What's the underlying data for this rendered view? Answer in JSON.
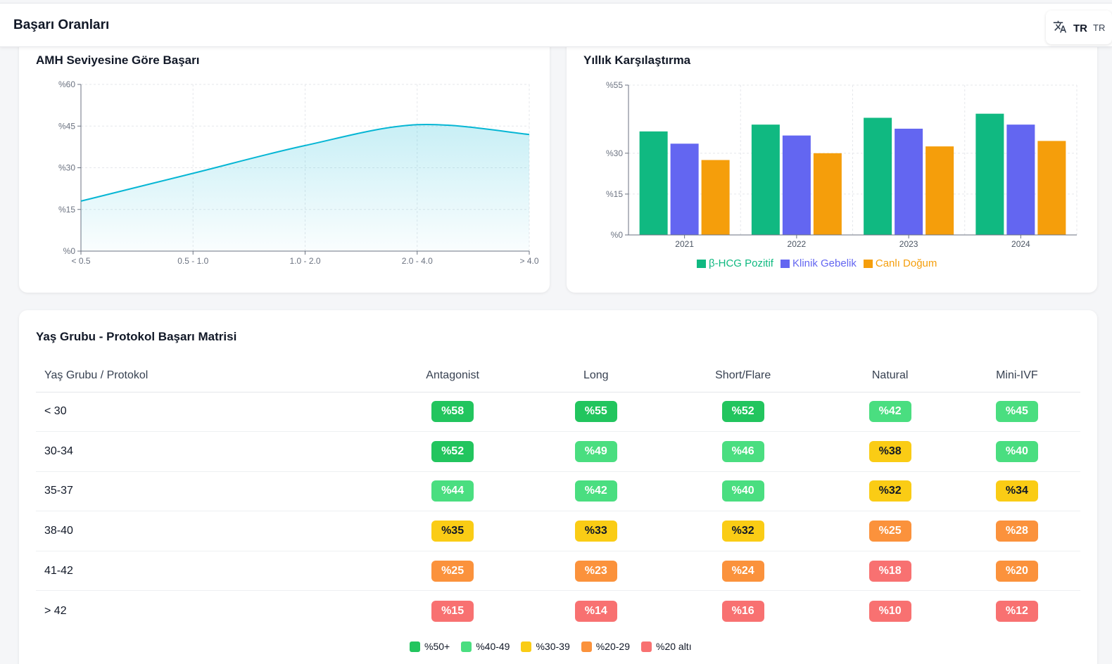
{
  "header": {
    "title": "Başarı Oranları"
  },
  "lang": {
    "icon": "translate-icon",
    "code": "TR",
    "code_clipped": "TR"
  },
  "amh_chart": {
    "title": "AMH Seviyesine Göre Başarı",
    "chart_data": {
      "type": "area",
      "categories": [
        "< 0.5",
        "0.5 - 1.0",
        "1.0 - 2.0",
        "2.0 - 4.0",
        "> 4.0"
      ],
      "values": [
        18,
        28,
        38,
        45.5,
        42
      ],
      "y_ticks": [
        "%0",
        "%15",
        "%30",
        "%45",
        "%60"
      ],
      "ylim": [
        0,
        60
      ],
      "grid": true,
      "color": "#06b6d4"
    }
  },
  "yearly_chart": {
    "title": "Yıllık Karşılaştırma",
    "chart_data": {
      "type": "bar",
      "categories": [
        "2021",
        "2022",
        "2023",
        "2024"
      ],
      "series": [
        {
          "name": "β-HCG Pozitif",
          "color": "#10b981",
          "values": [
            38,
            40.5,
            43,
            44.5
          ]
        },
        {
          "name": "Klinik Gebelik",
          "color": "#6366f1",
          "values": [
            33.5,
            36.5,
            39,
            40.5
          ]
        },
        {
          "name": "Canlı Doğum",
          "color": "#f59e0b",
          "values": [
            27.5,
            30,
            32.5,
            34.5
          ]
        }
      ],
      "y_ticks": [
        "%0",
        "%15",
        "%30",
        "%55"
      ],
      "y_tick_values": [
        0,
        15,
        30,
        55
      ],
      "ylim": [
        0,
        55
      ],
      "grid": true,
      "legend": "bottom"
    }
  },
  "matrix": {
    "title": "Yaş Grubu - Protokol Başarı Matrisi",
    "header_first": "Yaş Grubu / Protokol",
    "columns": [
      "Antagonist",
      "Long",
      "Short/Flare",
      "Natural",
      "Mini-IVF"
    ],
    "rows": [
      {
        "label": "< 30",
        "values": [
          "%58",
          "%55",
          "%52",
          "%42",
          "%45"
        ]
      },
      {
        "label": "30-34",
        "values": [
          "%52",
          "%49",
          "%46",
          "%38",
          "%40"
        ]
      },
      {
        "label": "35-37",
        "values": [
          "%44",
          "%42",
          "%40",
          "%32",
          "%34"
        ]
      },
      {
        "label": "38-40",
        "values": [
          "%35",
          "%33",
          "%32",
          "%25",
          "%28"
        ]
      },
      {
        "label": "41-42",
        "values": [
          "%25",
          "%23",
          "%24",
          "%18",
          "%20"
        ]
      },
      {
        "label": "> 42",
        "values": [
          "%15",
          "%14",
          "%16",
          "%10",
          "%12"
        ]
      }
    ],
    "legend": [
      {
        "label": "%50+",
        "color": "#22c55e"
      },
      {
        "label": "%40-49",
        "color": "#4ade80"
      },
      {
        "label": "%30-39",
        "color": "#facc15"
      },
      {
        "label": "%20-29",
        "color": "#fb923c"
      },
      {
        "label": "%20 altı",
        "color": "#f87171"
      }
    ]
  }
}
